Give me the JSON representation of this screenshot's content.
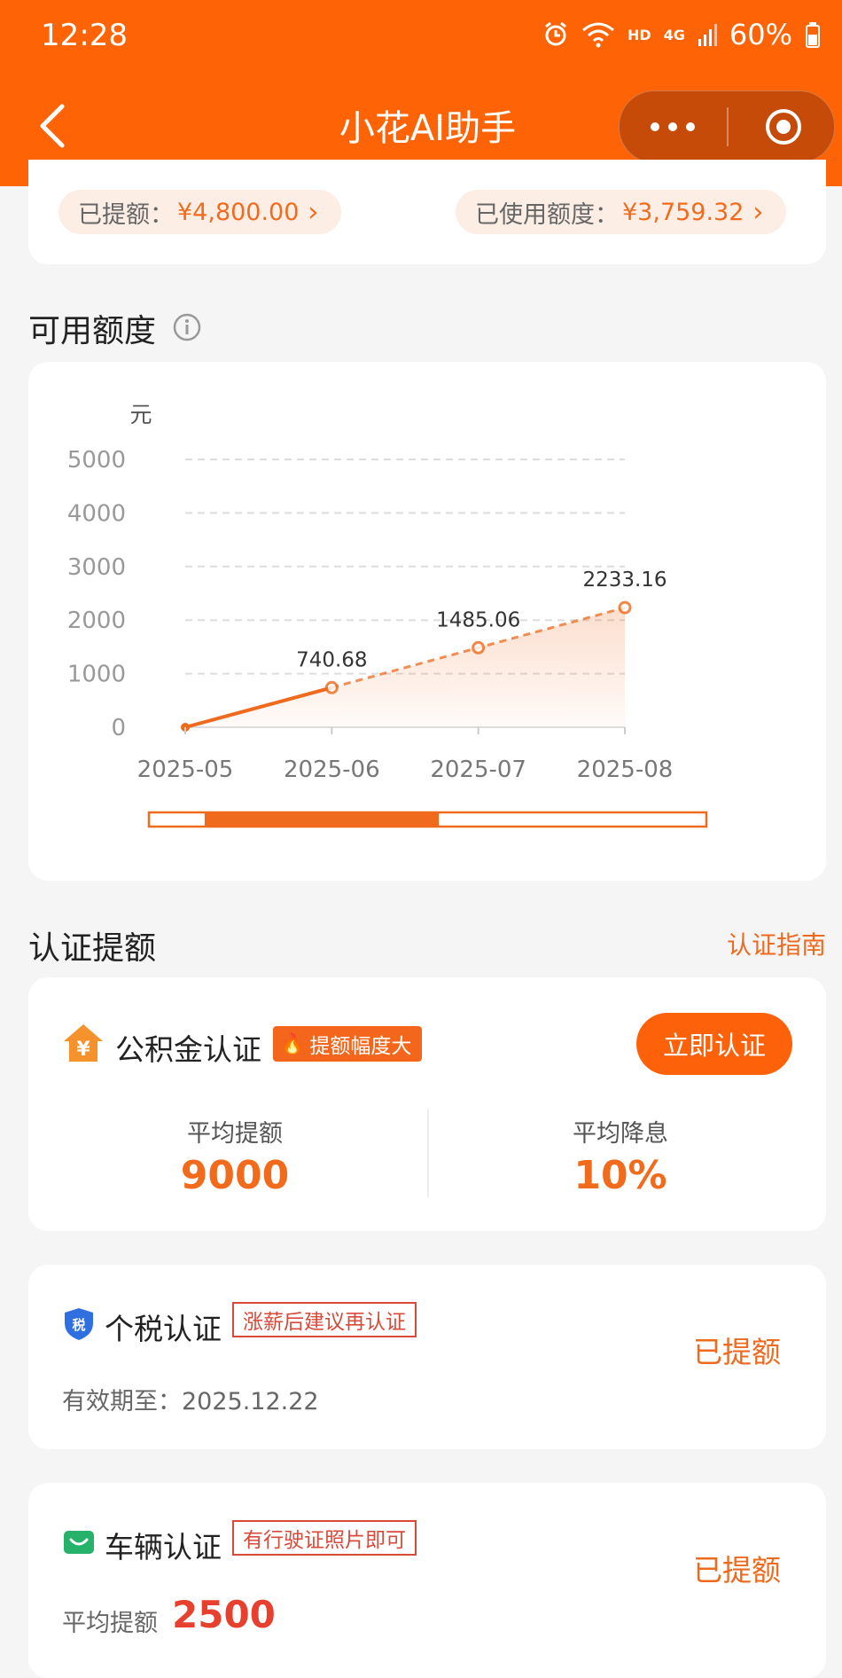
{
  "status_bar": {
    "time": "12:28",
    "network": "HD",
    "signal": "4G",
    "battery": "60%"
  },
  "header": {
    "title": "小花AI助手"
  },
  "limits": {
    "withdrawn_label": "已提额：",
    "withdrawn_value": "¥4,800.00",
    "used_label": "已使用额度：",
    "used_value": "¥3,759.32"
  },
  "available": {
    "title": "可用额度"
  },
  "chart_data": {
    "type": "line",
    "ylabel": "元",
    "xlabel": "",
    "categories": [
      "2025-05",
      "2025-06",
      "2025-07",
      "2025-08"
    ],
    "values": [
      0,
      740.68,
      1485.06,
      2233.16
    ],
    "point_labels": [
      "",
      "740.68",
      "1485.06",
      "2233.16"
    ],
    "actual_through_index": 1,
    "forecast_dashed_from_index": 1,
    "ylim": [
      0,
      5000
    ],
    "yticks": [
      "0",
      "1000",
      "2000",
      "3000",
      "4000",
      "5000"
    ],
    "grid": true,
    "color": "#ef6a1d",
    "slider_range": [
      0.1,
      0.52
    ]
  },
  "certification": {
    "title": "认证提额",
    "guide_link": "认证指南",
    "housing_fund": {
      "title": "公积金认证",
      "badge": "提额幅度大",
      "button": "立即认证",
      "stat1_label": "平均提额",
      "stat1_value": "9000",
      "stat2_label": "平均降息",
      "stat2_value": "10%",
      "icon_glyph": "¥"
    },
    "tax": {
      "title": "个税认证",
      "tag": "涨薪后建议再认证",
      "status": "已提额",
      "validity": "有效期至：2025.12.22",
      "icon_glyph": "税"
    },
    "vehicle": {
      "title": "车辆认证",
      "tag": "有行驶证照片即可",
      "status": "已提额",
      "avg_label": "平均提额",
      "avg_value": "2500"
    }
  }
}
